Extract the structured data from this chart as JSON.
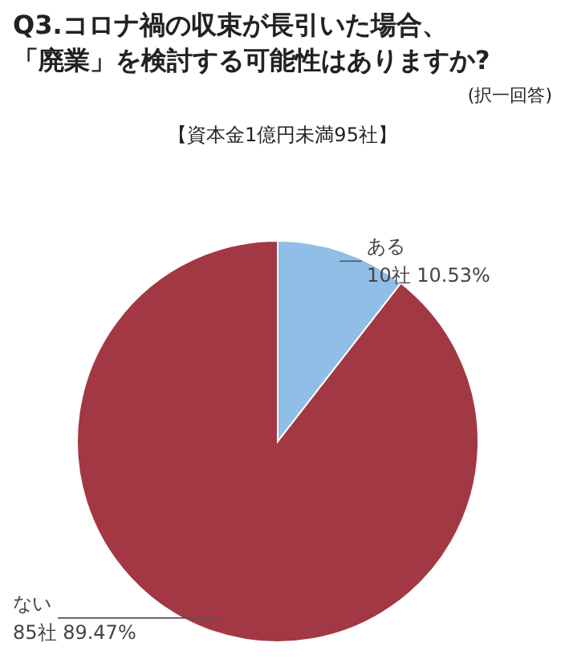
{
  "chart_data": {
    "type": "pie",
    "title": "Q3.コロナ禍の収束が長引いた場合、「廃業」を検討する可能性はありますか?",
    "subtitle": "【資本金1億円未満95社】",
    "annotations": [
      "(択一回答)"
    ],
    "categories": [
      "ある",
      "ない"
    ],
    "values": [
      10,
      85
    ],
    "value_labels": [
      "10社 10.53%",
      "85社 89.47%"
    ],
    "colors": [
      "#8fbee6",
      "#a23843"
    ]
  }
}
